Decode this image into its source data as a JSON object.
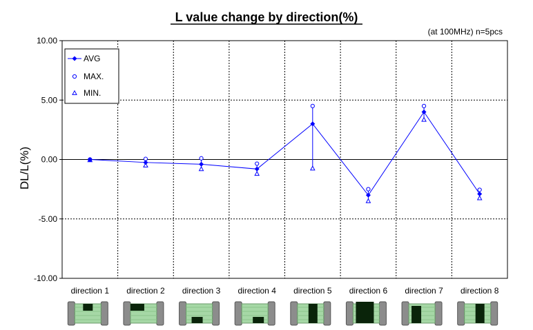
{
  "chart_data": {
    "type": "line",
    "title": "L value change by direction(%)",
    "note": "(at 100MHz)  n=5pcs",
    "ylabel": "DL/L(%)",
    "xlabel": "",
    "ylim": [
      -10,
      10
    ],
    "yticks": [
      {
        "value": 10,
        "label": "10.00"
      },
      {
        "value": 5,
        "label": "5.00"
      },
      {
        "value": 0,
        "label": "0.00"
      },
      {
        "value": -5,
        "label": "-5.00"
      },
      {
        "value": -10,
        "label": "-10.00"
      }
    ],
    "categories": [
      "direction 1",
      "direction 2",
      "direction 3",
      "direction 4",
      "direction 5",
      "direction 6",
      "direction 7",
      "direction 8"
    ],
    "grid": true,
    "legend_position": "top-left",
    "series": [
      {
        "name": "AVG",
        "marker": "diamond",
        "values": [
          0.0,
          -0.25,
          -0.4,
          -0.8,
          3.0,
          -3.0,
          4.0,
          -2.9
        ]
      },
      {
        "name": "MAX.",
        "marker": "circle",
        "values": [
          0.0,
          0.05,
          0.1,
          -0.35,
          4.5,
          -2.5,
          4.5,
          -2.55
        ]
      },
      {
        "name": "MIN.",
        "marker": "triangle",
        "values": [
          -0.05,
          -0.5,
          -0.8,
          -1.2,
          -0.75,
          -3.5,
          3.35,
          -3.25
        ]
      }
    ],
    "colors": {
      "series": "#0000ff",
      "grid": "#000000",
      "chip_body": "#a6d8a6",
      "chip_end": "#8c8c8c",
      "chip_dark": "#0a240a"
    },
    "chip_marks": [
      {
        "position": "top-center"
      },
      {
        "position": "top-left"
      },
      {
        "position": "bottom-center"
      },
      {
        "position": "bottom-right"
      },
      {
        "position": "middle-right"
      },
      {
        "position": "middle-center"
      },
      {
        "position": "middle-left"
      },
      {
        "position": "middle-right"
      }
    ]
  }
}
